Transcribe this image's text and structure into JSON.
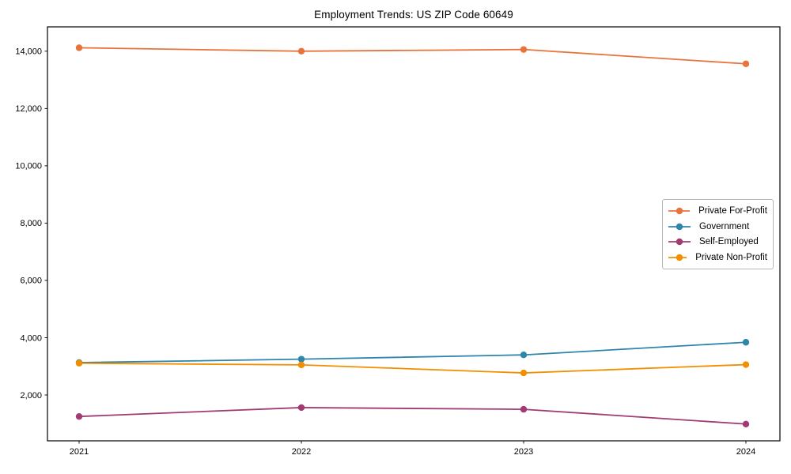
{
  "chart_data": {
    "type": "line",
    "title": "Employment Trends: US ZIP Code 60649",
    "x": [
      "2021",
      "2022",
      "2023",
      "2024"
    ],
    "series": [
      {
        "name": "Private For-Profit",
        "color": "#E8743B",
        "values": [
          14120,
          14000,
          14060,
          13560
        ]
      },
      {
        "name": "Government",
        "color": "#2E86AB",
        "values": [
          3130,
          3250,
          3400,
          3840
        ]
      },
      {
        "name": "Self-Employed",
        "color": "#A23B72",
        "values": [
          1250,
          1560,
          1500,
          985
        ]
      },
      {
        "name": "Private Non-Profit",
        "color": "#F18F01",
        "values": [
          3110,
          3050,
          2770,
          3060
        ]
      }
    ],
    "xlabel": "",
    "ylabel": "",
    "ylim": [
      400,
      14850
    ],
    "yticks": [
      2000,
      4000,
      6000,
      8000,
      10000,
      12000,
      14000
    ],
    "ytick_labels": [
      "2,000",
      "4,000",
      "6,000",
      "8,000",
      "10,000",
      "12,000",
      "14,000"
    ],
    "grid": false,
    "legend_position": "center-right",
    "marker": "circle",
    "axis_color": "#000000"
  }
}
